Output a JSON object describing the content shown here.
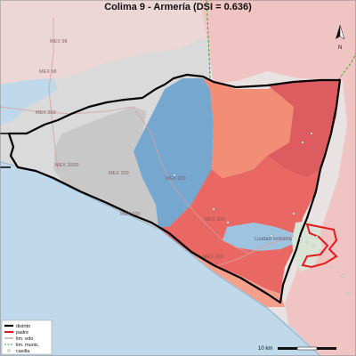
{
  "title": "Colima 9 - Armería (DSI = 0.636)",
  "north_label": "N",
  "road_labels": [
    "MEX 98",
    "MEX 98",
    "MEX 200",
    "MEX 200D",
    "MEX 200",
    "MEX 200",
    "MEX 200",
    "MEX 200",
    "MEX 200"
  ],
  "place_label": "Ciudad Armería",
  "scale_label": "10 km",
  "legend": {
    "items": [
      {
        "label": "distrito",
        "style": "thick-black"
      },
      {
        "label": "padre",
        "style": "thick-red"
      },
      {
        "label": "lim. edo.",
        "style": "thin-gray"
      },
      {
        "label": "lim. munic.",
        "style": "dashed-green"
      },
      {
        "label": "casilla",
        "style": "dot"
      }
    ]
  },
  "colors": {
    "ocean": "#bdd7ea",
    "gray_area": "#dcdcdc",
    "blue_area": "#74a6cd",
    "pink_area": "#f2c7c7",
    "salmon_area": "#f18a73",
    "red_area": "#e85c5a",
    "district_border": "#000000",
    "parent_border": "#e31a1c",
    "municipal_line": "#2ca02c"
  }
}
